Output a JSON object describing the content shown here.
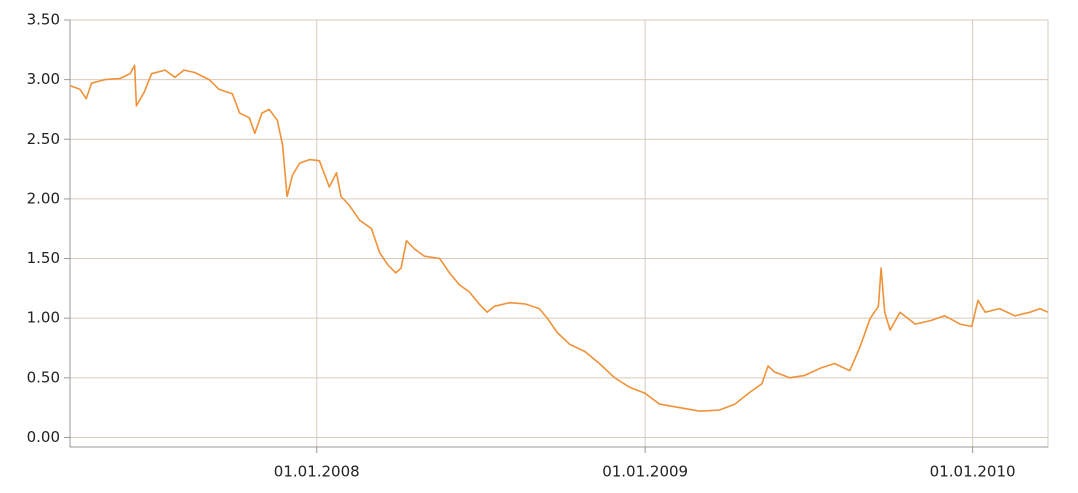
{
  "chart_data": {
    "type": "line",
    "x": [
      "2007-04-01",
      "2007-04-12",
      "2007-04-19",
      "2007-04-25",
      "2007-05-10",
      "2007-05-27",
      "2007-06-07",
      "2007-06-12",
      "2007-06-14",
      "2007-06-23",
      "2007-07-01",
      "2007-07-16",
      "2007-07-27",
      "2007-08-06",
      "2007-08-18",
      "2007-09-03",
      "2007-09-14",
      "2007-09-29",
      "2007-10-07",
      "2007-10-18",
      "2007-10-24",
      "2007-11-01",
      "2007-11-09",
      "2007-11-18",
      "2007-11-24",
      "2007-11-29",
      "2007-12-05",
      "2007-12-13",
      "2007-12-24",
      "2008-01-04",
      "2008-01-15",
      "2008-01-23",
      "2008-01-28",
      "2008-02-06",
      "2008-02-18",
      "2008-03-02",
      "2008-03-11",
      "2008-03-20",
      "2008-03-29",
      "2008-04-04",
      "2008-04-10",
      "2008-04-19",
      "2008-04-30",
      "2008-05-17",
      "2008-05-28",
      "2008-06-08",
      "2008-06-19",
      "2008-06-30",
      "2008-07-09",
      "2008-07-17",
      "2008-08-03",
      "2008-08-20",
      "2008-09-05",
      "2008-09-14",
      "2008-09-25",
      "2008-10-09",
      "2008-10-26",
      "2008-11-11",
      "2008-11-28",
      "2008-12-15",
      "2009-01-01",
      "2009-01-17",
      "2009-02-08",
      "2009-03-03",
      "2009-03-25",
      "2009-04-11",
      "2009-04-28",
      "2009-05-11",
      "2009-05-18",
      "2009-05-25",
      "2009-06-11",
      "2009-06-28",
      "2009-07-15",
      "2009-07-31",
      "2009-08-17",
      "2009-08-28",
      "2009-09-09",
      "2009-09-18",
      "2009-09-21",
      "2009-09-25",
      "2009-10-01",
      "2009-10-12",
      "2009-10-29",
      "2009-11-15",
      "2009-12-01",
      "2009-12-18",
      "2009-12-31",
      "2010-01-07",
      "2010-01-15",
      "2010-01-31",
      "2010-02-17",
      "2010-03-06",
      "2010-03-17",
      "2010-03-26"
    ],
    "series": [
      {
        "color": "#f0923a",
        "values": [
          2.95,
          2.92,
          2.84,
          2.97,
          3.0,
          3.01,
          3.05,
          3.12,
          2.78,
          2.9,
          3.05,
          3.08,
          3.02,
          3.08,
          3.06,
          3.0,
          2.92,
          2.88,
          2.72,
          2.68,
          2.55,
          2.72,
          2.75,
          2.66,
          2.45,
          2.02,
          2.2,
          2.3,
          2.33,
          2.32,
          2.1,
          2.22,
          2.02,
          1.95,
          1.82,
          1.75,
          1.55,
          1.45,
          1.38,
          1.42,
          1.65,
          1.58,
          1.52,
          1.5,
          1.38,
          1.28,
          1.22,
          1.12,
          1.05,
          1.1,
          1.13,
          1.12,
          1.08,
          1.0,
          0.88,
          0.78,
          0.72,
          0.62,
          0.5,
          0.42,
          0.37,
          0.28,
          0.25,
          0.22,
          0.23,
          0.28,
          0.38,
          0.45,
          0.6,
          0.55,
          0.5,
          0.52,
          0.58,
          0.62,
          0.56,
          0.75,
          1.0,
          1.1,
          1.42,
          1.05,
          0.9,
          1.05,
          0.95,
          0.98,
          1.02,
          0.95,
          0.93,
          1.15,
          1.05,
          1.08,
          1.02,
          1.05,
          1.08,
          1.05
        ]
      }
    ],
    "xlim": [
      "2007-04-01",
      "2010-03-26"
    ],
    "xticks": [
      {
        "value": "2008-01-01",
        "label": "01.01.2008"
      },
      {
        "value": "2009-01-01",
        "label": "01.01.2009"
      },
      {
        "value": "2010-01-01",
        "label": "01.01.2010"
      }
    ],
    "ylim": [
      -0.08,
      3.5
    ],
    "yticks": [
      {
        "value": 0,
        "label": "0.00"
      },
      {
        "value": 0.5,
        "label": "0.50"
      },
      {
        "value": 1,
        "label": "1.00"
      },
      {
        "value": 1.5,
        "label": "1.50"
      },
      {
        "value": 2,
        "label": "2.00"
      },
      {
        "value": 2.5,
        "label": "2.50"
      },
      {
        "value": 3,
        "label": "3.00"
      },
      {
        "value": 3.5,
        "label": "3.50"
      }
    ],
    "grid": true
  }
}
